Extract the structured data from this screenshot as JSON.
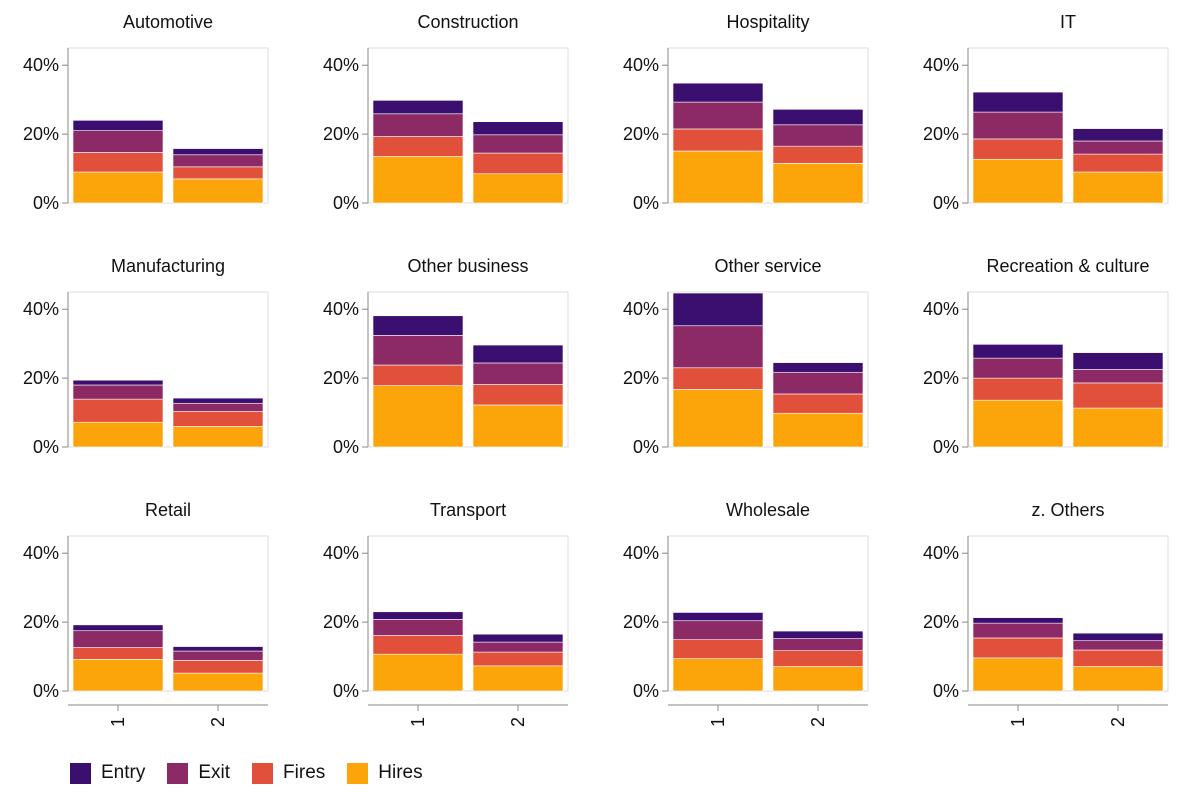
{
  "chart_data": {
    "type": "bar",
    "stacked": true,
    "categories": [
      "1",
      "2"
    ],
    "ylim": [
      0,
      0.45
    ],
    "yticks": [
      0,
      0.2,
      0.4
    ],
    "ytick_labels": [
      "0%",
      "20%",
      "40%"
    ],
    "series_names": [
      "Entry",
      "Exit",
      "Fires",
      "Hires"
    ],
    "series_colors": {
      "Entry": "#3b0f6f",
      "Exit": "#8c2a65",
      "Fires": "#e0503b",
      "Hires": "#fca50a"
    },
    "stack_order": [
      "Hires",
      "Fires",
      "Exit",
      "Entry"
    ],
    "facets": [
      {
        "title": "Automotive",
        "values": {
          "Hires": [
            0.09,
            0.07
          ],
          "Fires": [
            0.057,
            0.035
          ],
          "Exit": [
            0.063,
            0.035
          ],
          "Entry": [
            0.03,
            0.018
          ]
        }
      },
      {
        "title": "Construction",
        "values": {
          "Hires": [
            0.135,
            0.085
          ],
          "Fires": [
            0.058,
            0.06
          ],
          "Exit": [
            0.066,
            0.053
          ],
          "Entry": [
            0.039,
            0.038
          ]
        }
      },
      {
        "title": "Hospitality",
        "values": {
          "Hires": [
            0.151,
            0.115
          ],
          "Fires": [
            0.064,
            0.05
          ],
          "Exit": [
            0.078,
            0.062
          ],
          "Entry": [
            0.055,
            0.045
          ]
        }
      },
      {
        "title": "IT",
        "values": {
          "Hires": [
            0.127,
            0.09
          ],
          "Fires": [
            0.059,
            0.052
          ],
          "Exit": [
            0.078,
            0.038
          ],
          "Entry": [
            0.058,
            0.036
          ]
        }
      },
      {
        "title": "Manufacturing",
        "values": {
          "Hires": [
            0.072,
            0.06
          ],
          "Fires": [
            0.067,
            0.043
          ],
          "Exit": [
            0.041,
            0.024
          ],
          "Entry": [
            0.014,
            0.015
          ]
        }
      },
      {
        "title": "Other business",
        "values": {
          "Hires": [
            0.178,
            0.122
          ],
          "Fires": [
            0.06,
            0.06
          ],
          "Exit": [
            0.086,
            0.062
          ],
          "Entry": [
            0.057,
            0.052
          ]
        }
      },
      {
        "title": "Other service",
        "values": {
          "Hires": [
            0.167,
            0.098
          ],
          "Fires": [
            0.063,
            0.056
          ],
          "Exit": [
            0.122,
            0.063
          ],
          "Entry": [
            0.095,
            0.028
          ]
        }
      },
      {
        "title": "Recreation & culture",
        "values": {
          "Hires": [
            0.136,
            0.113
          ],
          "Fires": [
            0.064,
            0.073
          ],
          "Exit": [
            0.058,
            0.039
          ],
          "Entry": [
            0.04,
            0.049
          ]
        }
      },
      {
        "title": "Retail",
        "values": {
          "Hires": [
            0.092,
            0.052
          ],
          "Fires": [
            0.034,
            0.037
          ],
          "Exit": [
            0.049,
            0.027
          ],
          "Entry": [
            0.017,
            0.013
          ]
        }
      },
      {
        "title": "Transport",
        "values": {
          "Hires": [
            0.107,
            0.073
          ],
          "Fires": [
            0.054,
            0.04
          ],
          "Exit": [
            0.047,
            0.029
          ],
          "Entry": [
            0.022,
            0.023
          ]
        }
      },
      {
        "title": "Wholesale",
        "values": {
          "Hires": [
            0.094,
            0.071
          ],
          "Fires": [
            0.055,
            0.046
          ],
          "Exit": [
            0.055,
            0.035
          ],
          "Entry": [
            0.024,
            0.022
          ]
        }
      },
      {
        "title": "z. Others",
        "values": {
          "Hires": [
            0.096,
            0.071
          ],
          "Fires": [
            0.058,
            0.048
          ],
          "Exit": [
            0.043,
            0.027
          ],
          "Entry": [
            0.016,
            0.022
          ]
        }
      }
    ],
    "legend": {
      "position": "bottom-left",
      "entries": [
        "Entry",
        "Exit",
        "Fires",
        "Hires"
      ]
    }
  }
}
